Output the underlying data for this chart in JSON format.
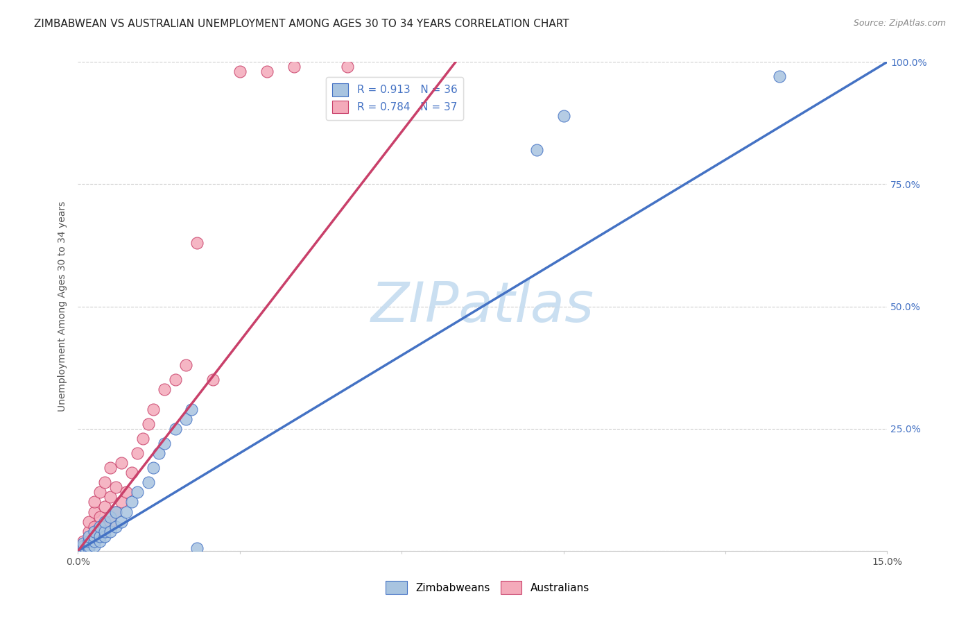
{
  "title": "ZIMBABWEAN VS AUSTRALIAN UNEMPLOYMENT AMONG AGES 30 TO 34 YEARS CORRELATION CHART",
  "source_text": "Source: ZipAtlas.com",
  "ylabel": "Unemployment Among Ages 30 to 34 years",
  "xlim": [
    0.0,
    0.15
  ],
  "ylim": [
    0.0,
    1.0
  ],
  "blue_R": 0.913,
  "blue_N": 36,
  "pink_R": 0.784,
  "pink_N": 37,
  "blue_color": "#A8C4E0",
  "pink_color": "#F4AABA",
  "blue_line_color": "#4472C4",
  "pink_line_color": "#C9406A",
  "watermark": "ZIPatlas",
  "watermark_color": "#C5DCF0",
  "grid_color": "#CCCCCC",
  "background_color": "#FFFFFF",
  "blue_scatter_x": [
    0.001,
    0.001,
    0.001,
    0.002,
    0.002,
    0.002,
    0.002,
    0.003,
    0.003,
    0.003,
    0.003,
    0.004,
    0.004,
    0.004,
    0.005,
    0.005,
    0.005,
    0.006,
    0.006,
    0.007,
    0.007,
    0.008,
    0.009,
    0.01,
    0.011,
    0.013,
    0.014,
    0.015,
    0.016,
    0.018,
    0.02,
    0.021,
    0.022,
    0.085,
    0.09,
    0.13
  ],
  "blue_scatter_y": [
    0.005,
    0.01,
    0.015,
    0.005,
    0.01,
    0.02,
    0.03,
    0.01,
    0.02,
    0.03,
    0.04,
    0.02,
    0.03,
    0.05,
    0.03,
    0.04,
    0.06,
    0.04,
    0.07,
    0.05,
    0.08,
    0.06,
    0.08,
    0.1,
    0.12,
    0.14,
    0.17,
    0.2,
    0.22,
    0.25,
    0.27,
    0.29,
    0.005,
    0.82,
    0.89,
    0.97
  ],
  "pink_scatter_x": [
    0.001,
    0.001,
    0.002,
    0.002,
    0.002,
    0.003,
    0.003,
    0.003,
    0.003,
    0.004,
    0.004,
    0.004,
    0.005,
    0.005,
    0.005,
    0.006,
    0.006,
    0.006,
    0.007,
    0.007,
    0.008,
    0.008,
    0.009,
    0.01,
    0.011,
    0.012,
    0.013,
    0.014,
    0.016,
    0.018,
    0.02,
    0.022,
    0.025,
    0.03,
    0.035,
    0.04,
    0.05
  ],
  "pink_scatter_y": [
    0.01,
    0.02,
    0.02,
    0.04,
    0.06,
    0.03,
    0.05,
    0.08,
    0.1,
    0.04,
    0.07,
    0.12,
    0.05,
    0.09,
    0.14,
    0.06,
    0.11,
    0.17,
    0.08,
    0.13,
    0.1,
    0.18,
    0.12,
    0.16,
    0.2,
    0.23,
    0.26,
    0.29,
    0.33,
    0.35,
    0.38,
    0.63,
    0.35,
    0.98,
    0.98,
    0.99,
    0.99
  ],
  "blue_line_x0": 0.0,
  "blue_line_y0": 0.0,
  "blue_line_x1": 0.15,
  "blue_line_y1": 1.0,
  "pink_line_x0": 0.0,
  "pink_line_y0": 0.0,
  "pink_line_x1": 0.07,
  "pink_line_y1": 1.0,
  "title_fontsize": 11,
  "axis_label_fontsize": 10,
  "tick_fontsize": 10,
  "legend_fontsize": 11,
  "source_fontsize": 9
}
